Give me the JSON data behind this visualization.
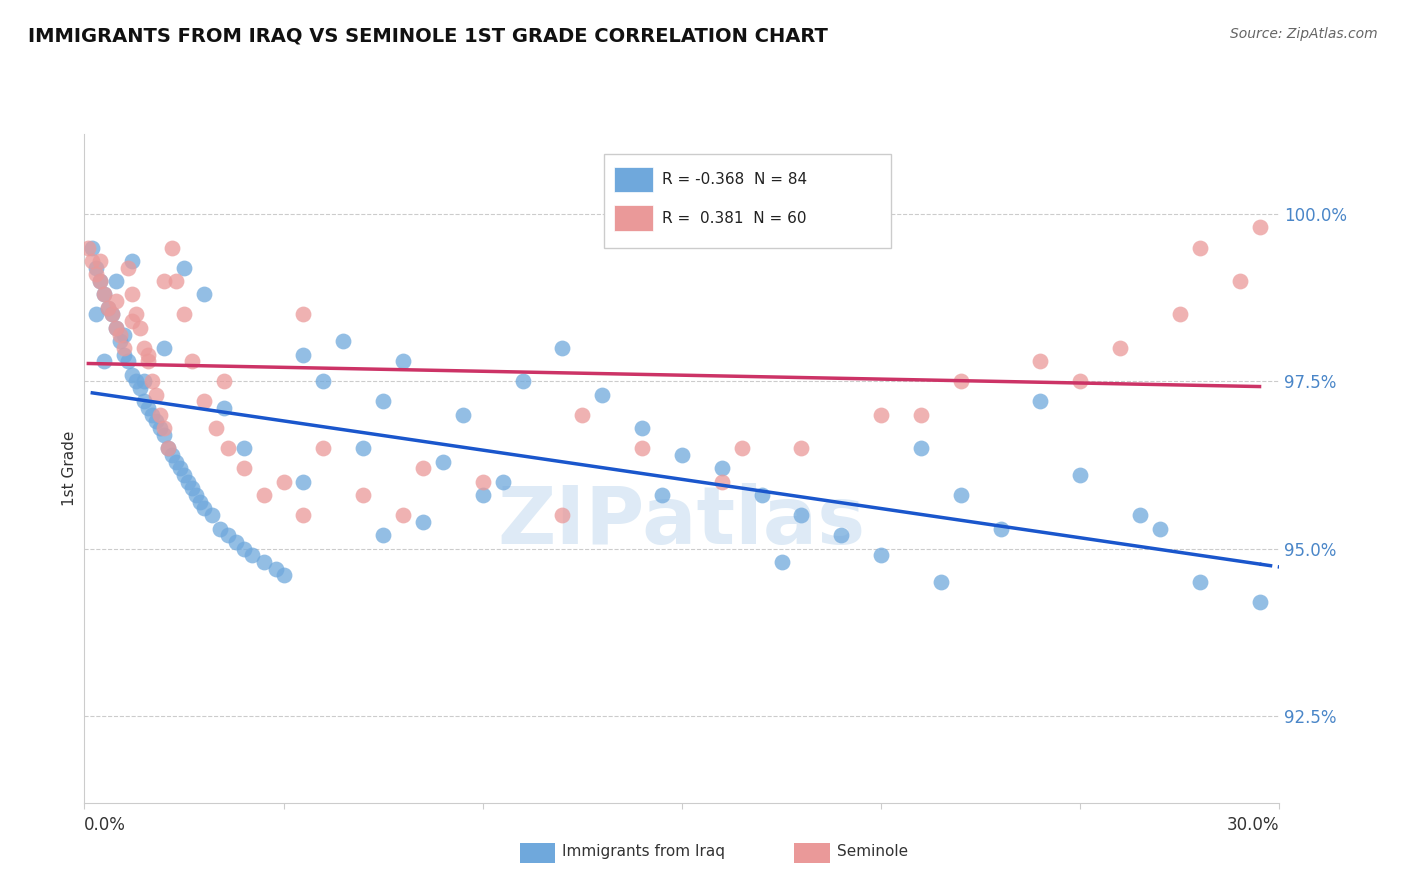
{
  "title": "IMMIGRANTS FROM IRAQ VS SEMINOLE 1ST GRADE CORRELATION CHART",
  "source_text": "Source: ZipAtlas.com",
  "ylabel": "1st Grade",
  "ylabel_ticks": [
    "92.5%",
    "95.0%",
    "97.5%",
    "100.0%"
  ],
  "ylabel_values": [
    92.5,
    95.0,
    97.5,
    100.0
  ],
  "xmin": 0.0,
  "xmax": 30.0,
  "ymin": 91.2,
  "ymax": 101.2,
  "legend_blue_r": "-0.368",
  "legend_blue_n": "84",
  "legend_pink_r": "0.381",
  "legend_pink_n": "60",
  "blue_color": "#6fa8dc",
  "pink_color": "#ea9999",
  "trend_blue_color": "#1a56cc",
  "trend_pink_color": "#cc3366",
  "watermark_color": "#c8ddf0",
  "blue_scatter_x": [
    0.2,
    0.3,
    0.4,
    0.5,
    0.6,
    0.7,
    0.8,
    0.9,
    1.0,
    1.1,
    1.2,
    1.3,
    1.4,
    1.5,
    1.6,
    1.7,
    1.8,
    1.9,
    2.0,
    2.1,
    2.2,
    2.3,
    2.4,
    2.5,
    2.6,
    2.7,
    2.8,
    2.9,
    3.0,
    3.2,
    3.4,
    3.6,
    3.8,
    4.0,
    4.2,
    4.5,
    4.8,
    5.0,
    5.5,
    6.0,
    6.5,
    7.0,
    7.5,
    8.0,
    8.5,
    9.0,
    9.5,
    10.0,
    11.0,
    12.0,
    13.0,
    14.0,
    15.0,
    16.0,
    17.0,
    18.0,
    19.0,
    20.0,
    21.0,
    22.0,
    23.0,
    24.0,
    25.0,
    26.5,
    28.0,
    0.3,
    0.5,
    0.8,
    1.0,
    1.2,
    1.5,
    2.0,
    2.5,
    3.0,
    3.5,
    4.0,
    5.5,
    7.5,
    10.5,
    14.5,
    17.5,
    21.5,
    27.0,
    29.5
  ],
  "blue_scatter_y": [
    99.5,
    99.2,
    99.0,
    98.8,
    98.6,
    98.5,
    98.3,
    98.1,
    97.9,
    97.8,
    97.6,
    97.5,
    97.4,
    97.2,
    97.1,
    97.0,
    96.9,
    96.8,
    96.7,
    96.5,
    96.4,
    96.3,
    96.2,
    96.1,
    96.0,
    95.9,
    95.8,
    95.7,
    95.6,
    95.5,
    95.3,
    95.2,
    95.1,
    95.0,
    94.9,
    94.8,
    94.7,
    94.6,
    96.0,
    97.5,
    98.1,
    96.5,
    97.2,
    97.8,
    95.4,
    96.3,
    97.0,
    95.8,
    97.5,
    98.0,
    97.3,
    96.8,
    96.4,
    96.2,
    95.8,
    95.5,
    95.2,
    94.9,
    96.5,
    95.8,
    95.3,
    97.2,
    96.1,
    95.5,
    94.5,
    98.5,
    97.8,
    99.0,
    98.2,
    99.3,
    97.5,
    98.0,
    99.2,
    98.8,
    97.1,
    96.5,
    97.9,
    95.2,
    96.0,
    95.8,
    94.8,
    94.5,
    95.3,
    94.2
  ],
  "pink_scatter_x": [
    0.1,
    0.2,
    0.3,
    0.4,
    0.5,
    0.6,
    0.7,
    0.8,
    0.9,
    1.0,
    1.1,
    1.2,
    1.3,
    1.4,
    1.5,
    1.6,
    1.7,
    1.8,
    1.9,
    2.0,
    2.1,
    2.2,
    2.3,
    2.5,
    2.7,
    3.0,
    3.3,
    3.6,
    4.0,
    4.5,
    5.0,
    5.5,
    6.0,
    7.0,
    8.0,
    10.0,
    12.0,
    14.0,
    16.0,
    18.0,
    20.0,
    22.0,
    24.0,
    26.0,
    28.0,
    29.0,
    0.4,
    0.8,
    1.2,
    1.6,
    2.0,
    3.5,
    5.5,
    8.5,
    12.5,
    16.5,
    21.0,
    25.0,
    27.5,
    29.5
  ],
  "pink_scatter_y": [
    99.5,
    99.3,
    99.1,
    99.0,
    98.8,
    98.6,
    98.5,
    98.3,
    98.2,
    98.0,
    99.2,
    98.8,
    98.5,
    98.3,
    98.0,
    97.8,
    97.5,
    97.3,
    97.0,
    96.8,
    96.5,
    99.5,
    99.0,
    98.5,
    97.8,
    97.2,
    96.8,
    96.5,
    96.2,
    95.8,
    96.0,
    95.5,
    96.5,
    95.8,
    95.5,
    96.0,
    95.5,
    96.5,
    96.0,
    96.5,
    97.0,
    97.5,
    97.8,
    98.0,
    99.5,
    99.0,
    99.3,
    98.7,
    98.4,
    97.9,
    99.0,
    97.5,
    98.5,
    96.2,
    97.0,
    96.5,
    97.0,
    97.5,
    98.5,
    99.8
  ]
}
